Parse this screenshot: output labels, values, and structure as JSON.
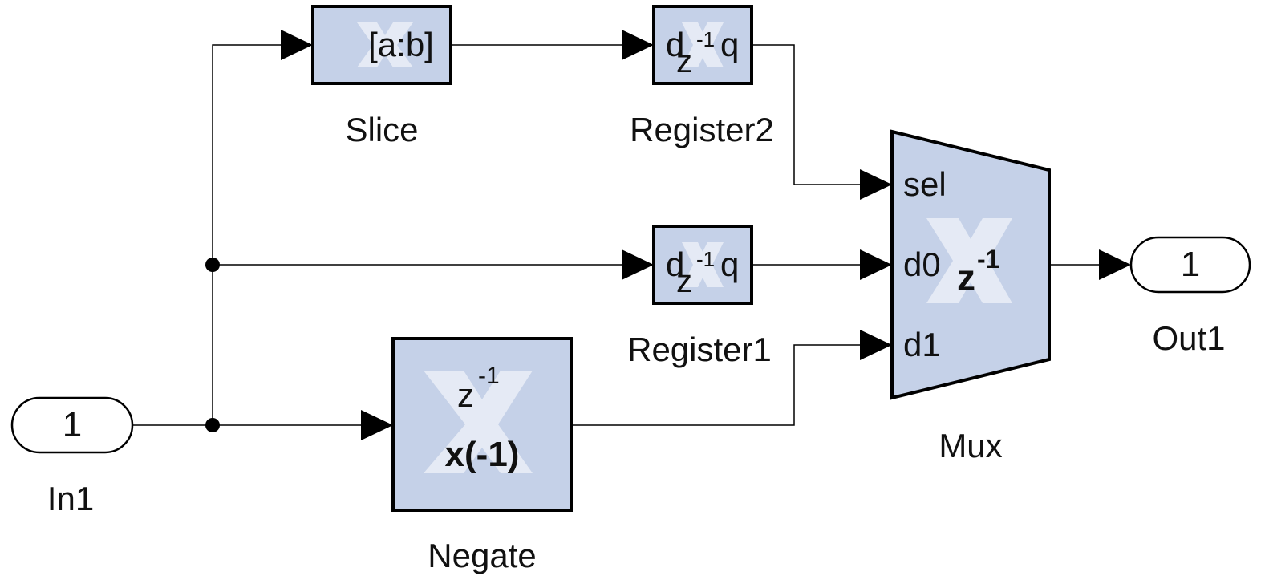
{
  "inport": {
    "number": "1",
    "name": "In1"
  },
  "outport": {
    "number": "1",
    "name": "Out1"
  },
  "slice": {
    "name": "Slice",
    "text": "[a:b]"
  },
  "register2": {
    "name": "Register2",
    "d": "d",
    "z": "z",
    "exp": "-1",
    "q": "q"
  },
  "register1": {
    "name": "Register1",
    "d": "d",
    "z": "z",
    "exp": "-1",
    "q": "q"
  },
  "negate": {
    "name": "Negate",
    "z": "z",
    "exp": "-1",
    "expr": "x(-1)"
  },
  "mux": {
    "name": "Mux",
    "ports": [
      "sel",
      "d0",
      "d1"
    ],
    "z": "z",
    "exp": "-1"
  }
}
